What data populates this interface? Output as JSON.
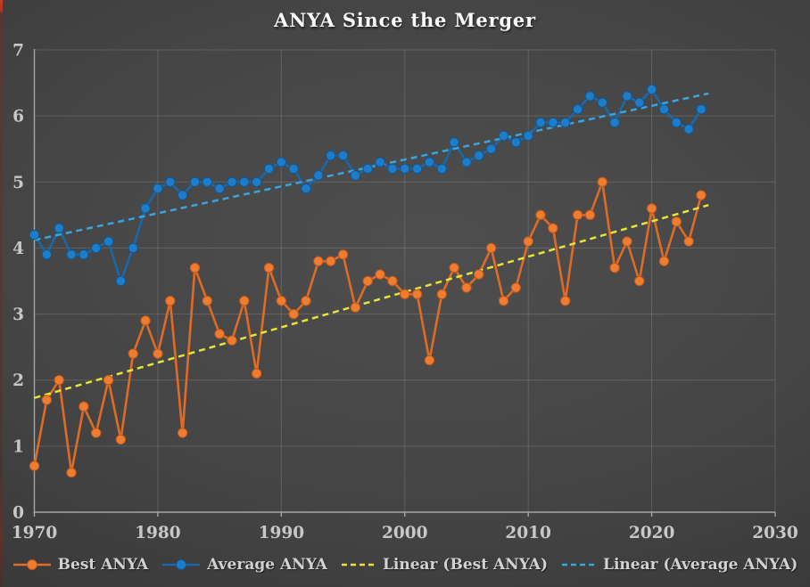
{
  "title": "ANYA Since the Merger",
  "colors": {
    "background_center": "#4e4e4e",
    "background_edge": "#2b2b2b",
    "grid": "rgba(255,255,255,0.14)",
    "axis": "#a6a6a6",
    "tick_text": "#c8c8c8",
    "title_text": "#fbfbfb",
    "legend_text": "#d2d2d2",
    "best_fill": "#ED7D31",
    "best_line": "#DE6B26",
    "best_marker_edge": "#C1561A",
    "avg_fill": "#1F7CC9",
    "avg_line": "#1C67A8",
    "avg_marker_edge": "#10578F",
    "trend_best": "#E9E435",
    "trend_avg": "#38A5E0",
    "left_edge_artifact": "#c43d27"
  },
  "chart_data": {
    "type": "line",
    "title": "ANYA Since the Merger",
    "xlabel": "",
    "ylabel": "",
    "xlim": [
      1970,
      2030
    ],
    "ylim": [
      0,
      7
    ],
    "x_ticks": [
      1970,
      1980,
      1990,
      2000,
      2010,
      2020,
      2030
    ],
    "y_ticks": [
      0,
      1,
      2,
      3,
      4,
      5,
      6,
      7
    ],
    "grid": true,
    "legend_position": "bottom",
    "x": [
      1970,
      1971,
      1972,
      1973,
      1974,
      1975,
      1976,
      1977,
      1978,
      1979,
      1980,
      1981,
      1982,
      1983,
      1984,
      1985,
      1986,
      1987,
      1988,
      1989,
      1990,
      1991,
      1992,
      1993,
      1994,
      1995,
      1996,
      1997,
      1998,
      1999,
      2000,
      2001,
      2002,
      2003,
      2004,
      2005,
      2006,
      2007,
      2008,
      2009,
      2010,
      2011,
      2012,
      2013,
      2014,
      2015,
      2016,
      2017,
      2018,
      2019,
      2020,
      2021,
      2022,
      2023,
      2024
    ],
    "series": [
      {
        "name": "Best ANYA",
        "marker": "circle",
        "values": [
          0.7,
          1.7,
          2.0,
          0.6,
          1.6,
          1.2,
          2.0,
          1.1,
          2.4,
          2.9,
          2.4,
          3.2,
          1.2,
          3.7,
          3.2,
          2.7,
          2.6,
          3.2,
          2.1,
          3.7,
          3.2,
          3.0,
          3.2,
          3.8,
          3.8,
          3.9,
          3.1,
          3.5,
          3.6,
          3.5,
          3.3,
          3.3,
          2.3,
          3.3,
          3.7,
          3.4,
          3.6,
          4.0,
          3.2,
          3.4,
          4.1,
          4.5,
          4.3,
          3.2,
          4.5,
          4.5,
          5.0,
          3.7,
          4.1,
          3.5,
          4.6,
          3.8,
          4.4,
          4.1,
          4.8
        ]
      },
      {
        "name": "Average ANYA",
        "marker": "circle",
        "values": [
          4.2,
          3.9,
          4.3,
          3.9,
          3.9,
          4.0,
          4.1,
          3.5,
          4.0,
          4.6,
          4.9,
          5.0,
          4.8,
          5.0,
          5.0,
          4.9,
          5.0,
          5.0,
          5.0,
          5.2,
          5.3,
          5.2,
          4.9,
          5.1,
          5.4,
          5.4,
          5.1,
          5.2,
          5.3,
          5.2,
          5.2,
          5.2,
          5.3,
          5.2,
          5.6,
          5.3,
          5.4,
          5.5,
          5.7,
          5.6,
          5.7,
          5.9,
          5.9,
          5.9,
          6.1,
          6.3,
          6.2,
          5.9,
          6.3,
          6.2,
          6.4,
          6.1,
          5.9,
          5.8,
          6.1
        ]
      }
    ],
    "trendlines": [
      {
        "name": "Linear (Best ANYA)",
        "x1": 1970,
        "y1": 1.73,
        "x2": 2024.6,
        "y2": 4.65
      },
      {
        "name": "Linear (Average ANYA)",
        "x1": 1970,
        "y1": 4.12,
        "x2": 2024.6,
        "y2": 6.34
      }
    ]
  },
  "legend": {
    "items": [
      {
        "label": "Best ANYA",
        "swatch": "line-marker",
        "color_key": "best"
      },
      {
        "label": "Average ANYA",
        "swatch": "line-marker",
        "color_key": "avg"
      },
      {
        "label": "Linear (Best ANYA)",
        "swatch": "dashes",
        "color_key": "trend_best"
      },
      {
        "label": "Linear (Average ANYA)",
        "swatch": "dashes",
        "color_key": "trend_avg"
      }
    ]
  }
}
